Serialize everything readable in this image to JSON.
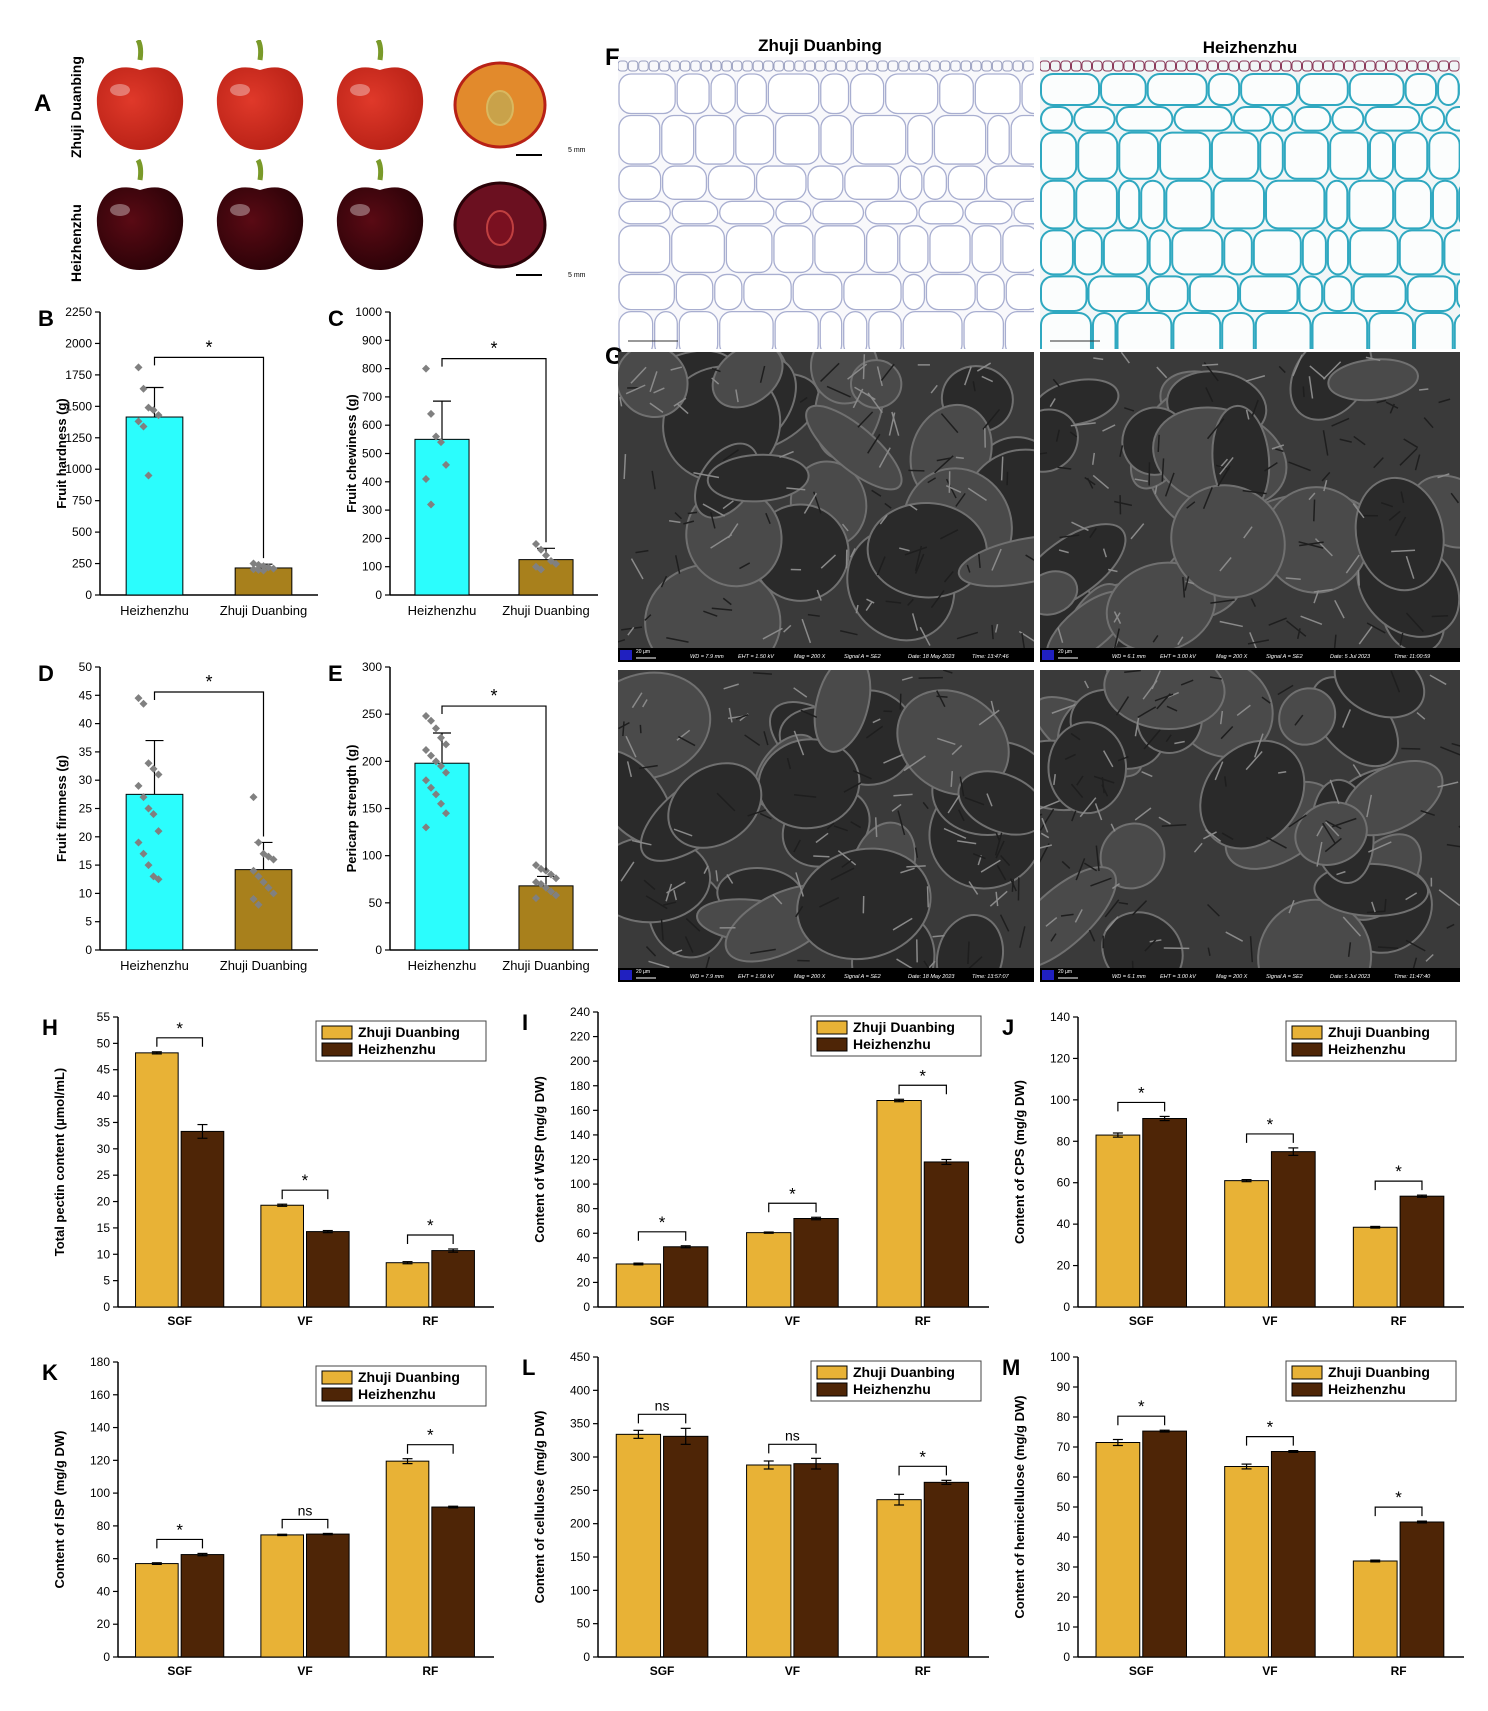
{
  "panelA": {
    "letter": "A",
    "rows": [
      {
        "label": "Zhuji Duanbing",
        "skin": "#e0392a",
        "skin_dark": "#b82116",
        "cut": "#e28a2c",
        "scale": "5 mm"
      },
      {
        "label": "Heizhenzhu",
        "skin": "#5a0a14",
        "skin_dark": "#2a0207",
        "cut": "#6b1020",
        "scale": "5 mm"
      }
    ]
  },
  "panelF": {
    "letter": "F",
    "titles": [
      "Zhuji Duanbing",
      "Heizhenzhu"
    ]
  },
  "panelG": {
    "letter": "G",
    "captions": [
      {
        "wd": "WD = 7.9 mm",
        "eht": "EHT = 1.50 kV",
        "mag": "Mag =   200 X",
        "signal": "Signal A = SE2",
        "date": "Date: 18 May 2023",
        "time": "Time: 13:47:46",
        "scale": "20 µm"
      },
      {
        "wd": "WD = 6.1 mm",
        "eht": "EHT = 3.00 kV",
        "mag": "Mag =   200 X",
        "signal": "Signal A = SE2",
        "date": "Date: 5 Jul 2023",
        "time": "Time: 11:00:59",
        "scale": "20 µm"
      },
      {
        "wd": "WD = 7.9 mm",
        "eht": "EHT = 1.50 kV",
        "mag": "Mag =   200 X",
        "signal": "Signal A = SE2",
        "date": "Date: 18 May 2023",
        "time": "Time: 13:57:07",
        "scale": "20 µm"
      },
      {
        "wd": "WD = 6.1 mm",
        "eht": "EHT = 3.00 kV",
        "mag": "Mag =   200 X",
        "signal": "Signal A = SE2",
        "date": "Date: 5 Jul 2023",
        "time": "Time: 11:47:40",
        "scale": "20 µm"
      }
    ]
  },
  "colors": {
    "cyan": "#2bfdfd",
    "olive": "#a8801c",
    "gold": "#e8b236",
    "brown": "#4e2506",
    "dot": "#808080"
  },
  "chart_data": [
    {
      "id": "B",
      "letter": "B",
      "type": "bar",
      "ylabel": "Fruit hardness (g)",
      "categories": [
        "Heizhenzhu",
        "Zhuji Duanbing"
      ],
      "values": [
        1415,
        215
      ],
      "errors": [
        235,
        30
      ],
      "ylim": [
        0,
        2250
      ],
      "yticks": [
        0,
        250,
        500,
        750,
        1000,
        1250,
        1500,
        1750,
        2000,
        2250
      ],
      "sig": "*",
      "points": [
        [
          1810,
          1640,
          1490,
          1470,
          1430,
          1380,
          1340,
          950
        ],
        [
          250,
          240,
          230,
          220,
          210,
          205,
          200,
          195
        ]
      ]
    },
    {
      "id": "C",
      "letter": "C",
      "type": "bar",
      "ylabel": "Fruit chewiness (g)",
      "categories": [
        "Heizhenzhu",
        "Zhuji Duanbing"
      ],
      "values": [
        550,
        125
      ],
      "errors": [
        135,
        40
      ],
      "ylim": [
        0,
        1000
      ],
      "yticks": [
        0,
        100,
        200,
        300,
        400,
        500,
        600,
        700,
        800,
        900,
        1000
      ],
      "sig": "*",
      "points": [
        [
          800,
          640,
          560,
          540,
          460,
          410,
          320
        ],
        [
          180,
          160,
          140,
          120,
          110,
          100,
          90
        ]
      ]
    },
    {
      "id": "D",
      "letter": "D",
      "type": "bar",
      "ylabel": "Fruit firmness (g)",
      "categories": [
        "Heizhenzhu",
        "Zhuji Duanbing"
      ],
      "values": [
        27.5,
        14.2
      ],
      "errors": [
        9.5,
        4.8
      ],
      "ylim": [
        0,
        50
      ],
      "yticks": [
        0,
        5,
        10,
        15,
        20,
        25,
        30,
        35,
        40,
        45,
        50
      ],
      "sig": "*",
      "points": [
        [
          44.5,
          43.5,
          33,
          32,
          31,
          29,
          27,
          25,
          24,
          21,
          19,
          17,
          15,
          13,
          12.5
        ],
        [
          27,
          19,
          17,
          16.5,
          16,
          14,
          13,
          12,
          11,
          10,
          9,
          8
        ]
      ]
    },
    {
      "id": "E",
      "letter": "E",
      "type": "bar",
      "ylabel": "Pericarp strength (g)",
      "categories": [
        "Heizhenzhu",
        "Zhuji Duanbing"
      ],
      "values": [
        198,
        68
      ],
      "errors": [
        32,
        10
      ],
      "ylim": [
        0,
        300
      ],
      "yticks": [
        0,
        50,
        100,
        150,
        200,
        250,
        300
      ],
      "sig": "*",
      "points": [
        [
          248,
          243,
          235,
          225,
          218,
          212,
          206,
          200,
          195,
          188,
          180,
          172,
          165,
          155,
          145,
          130
        ],
        [
          90,
          86,
          84,
          80,
          76,
          72,
          70,
          66,
          62,
          58,
          55
        ]
      ]
    },
    {
      "id": "H",
      "letter": "H",
      "type": "bar",
      "ylabel": "Total pectin content (µmol/mL)",
      "categories": [
        "SGF",
        "VF",
        "RF"
      ],
      "ylim": [
        0,
        55
      ],
      "yticks": [
        0,
        5,
        10,
        15,
        20,
        25,
        30,
        35,
        40,
        45,
        50,
        55
      ],
      "series": [
        {
          "name": "Zhuji Duanbing",
          "values": [
            48.2,
            19.3,
            8.4
          ],
          "errors": [
            0.2,
            0.2,
            0.2
          ]
        },
        {
          "name": "Heizhenzhu",
          "values": [
            33.3,
            14.3,
            10.7
          ],
          "errors": [
            1.3,
            0.2,
            0.3
          ]
        }
      ],
      "sig": [
        "*",
        "*",
        "*"
      ]
    },
    {
      "id": "I",
      "letter": "I",
      "type": "bar",
      "ylabel": "Content of WSP (mg/g DW)",
      "categories": [
        "SGF",
        "VF",
        "RF"
      ],
      "ylim": [
        0,
        240
      ],
      "yticks": [
        0,
        20,
        40,
        60,
        80,
        100,
        120,
        140,
        160,
        180,
        200,
        220,
        240
      ],
      "series": [
        {
          "name": "Zhuji Duanbing",
          "values": [
            35,
            60.5,
            168
          ],
          "errors": [
            0.7,
            0.5,
            1
          ]
        },
        {
          "name": "Heizhenzhu",
          "values": [
            49,
            72,
            118
          ],
          "errors": [
            0.8,
            1,
            2
          ]
        }
      ],
      "sig": [
        "*",
        "*",
        "*"
      ]
    },
    {
      "id": "J",
      "letter": "J",
      "type": "bar",
      "ylabel": "Content of  CPS (mg/g DW)",
      "categories": [
        "SGF",
        "VF",
        "RF"
      ],
      "ylim": [
        0,
        140
      ],
      "yticks": [
        0,
        20,
        40,
        60,
        80,
        100,
        120,
        140
      ],
      "series": [
        {
          "name": "Zhuji Duanbing",
          "values": [
            83,
            61,
            38.5
          ],
          "errors": [
            1,
            0.5,
            0.4
          ]
        },
        {
          "name": "Heizhenzhu",
          "values": [
            91,
            75,
            53.5
          ],
          "errors": [
            1,
            1.8,
            0.5
          ]
        }
      ],
      "sig": [
        "*",
        "*",
        "*"
      ]
    },
    {
      "id": "K",
      "letter": "K",
      "type": "bar",
      "ylabel": "Content of ISP (mg/g DW)",
      "categories": [
        "SGF",
        "VF",
        "RF"
      ],
      "ylim": [
        0,
        180
      ],
      "yticks": [
        0,
        20,
        40,
        60,
        80,
        100,
        120,
        140,
        160,
        180
      ],
      "series": [
        {
          "name": "Zhuji Duanbing",
          "values": [
            57,
            74.5,
            119.5
          ],
          "errors": [
            0.5,
            0.4,
            1.5
          ]
        },
        {
          "name": "Heizhenzhu",
          "values": [
            62.5,
            75,
            91.5
          ],
          "errors": [
            0.7,
            0.4,
            0.5
          ]
        }
      ],
      "sig": [
        "*",
        "ns",
        "*"
      ]
    },
    {
      "id": "L",
      "letter": "L",
      "type": "bar",
      "ylabel": "Content of cellulose (mg/g DW)",
      "categories": [
        "SGF",
        "VF",
        "RF"
      ],
      "ylim": [
        0,
        450
      ],
      "yticks": [
        0,
        50,
        100,
        150,
        200,
        250,
        300,
        350,
        400,
        450
      ],
      "series": [
        {
          "name": "Zhuji Duanbing",
          "values": [
            334,
            288,
            236
          ],
          "errors": [
            6,
            6,
            8
          ]
        },
        {
          "name": "Heizhenzhu",
          "values": [
            331,
            290,
            262
          ],
          "errors": [
            12,
            8,
            3
          ]
        }
      ],
      "sig": [
        "ns",
        "ns",
        "*"
      ]
    },
    {
      "id": "M",
      "letter": "M",
      "type": "bar",
      "ylabel": "Content of hemicellulose (mg/g DW)",
      "categories": [
        "SGF",
        "VF",
        "RF"
      ],
      "ylim": [
        0,
        100
      ],
      "yticks": [
        0,
        10,
        20,
        30,
        40,
        50,
        60,
        70,
        80,
        90,
        100
      ],
      "series": [
        {
          "name": "Zhuji Duanbing",
          "values": [
            71.5,
            63.5,
            32
          ],
          "errors": [
            1,
            0.8,
            0.3
          ]
        },
        {
          "name": "Heizhenzhu",
          "values": [
            75.3,
            68.5,
            45
          ],
          "errors": [
            0.3,
            0.3,
            0.3
          ]
        }
      ],
      "sig": [
        "*",
        "*",
        "*"
      ]
    }
  ]
}
